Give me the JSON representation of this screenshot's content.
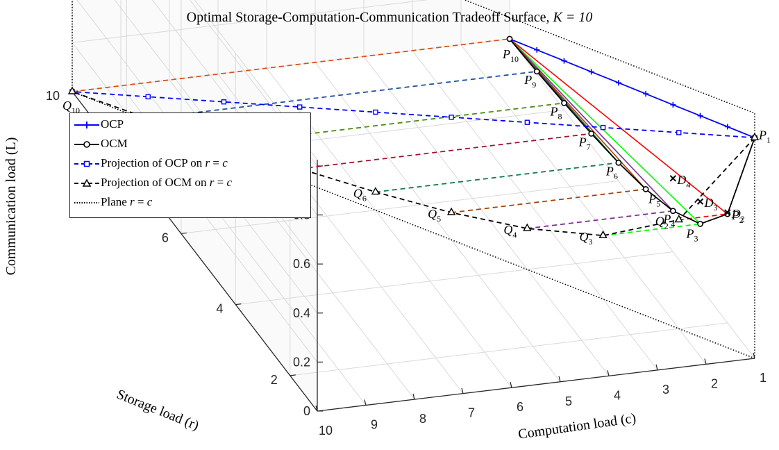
{
  "chart_data": {
    "type": "3d-line",
    "title": "Optimal Storage-Computation-Communication Tradeoff Surface, K = 10",
    "title_main": "Optimal Storage-Computation-Communication Tradeoff Surface, ",
    "title_param": "K = 10",
    "xlabel": "Computation load (c)",
    "ylabel": "Storage load (r)",
    "zlabel": "Communication load (L)",
    "K": 10,
    "xlim": [
      1,
      10
    ],
    "ylim": [
      1,
      10
    ],
    "zlim": [
      0,
      1
    ],
    "x_ticks": [
      10,
      9,
      8,
      7,
      6,
      5,
      4,
      3,
      2,
      1
    ],
    "y_ticks": [
      2,
      4,
      6,
      8,
      10
    ],
    "z_ticks": [
      0,
      0.2,
      0.4,
      0.6,
      0.8,
      1
    ],
    "legend": [
      "OCP",
      "OCM",
      "Projection of OCP on r = c",
      "Projection of OCM on r = c",
      "Plane r = c"
    ],
    "series": [
      {
        "name": "OCP",
        "r": [
          1,
          2,
          3,
          4,
          5,
          6,
          7,
          8,
          9,
          10
        ],
        "c": [
          1,
          1,
          1,
          1,
          1,
          1,
          1,
          1,
          1,
          1
        ],
        "L": [
          0.9,
          0.8,
          0.7,
          0.6,
          0.5,
          0.4,
          0.3,
          0.2,
          0.1,
          0.0
        ]
      },
      {
        "name": "OCM",
        "r": [
          1,
          2,
          3,
          4,
          5,
          6,
          7,
          8,
          9,
          10
        ],
        "c": [
          1,
          2,
          3,
          4,
          5,
          6,
          7,
          8,
          9,
          10
        ],
        "L": [
          0.9,
          0.444,
          0.259,
          0.167,
          0.111,
          0.074,
          0.048,
          0.028,
          0.012,
          0.0
        ]
      },
      {
        "name": "Projection of OCP on r = c",
        "r": [
          1,
          2,
          3,
          4,
          5,
          6,
          7,
          8,
          9,
          10
        ],
        "c": [
          1,
          2,
          3,
          4,
          5,
          6,
          7,
          8,
          9,
          10
        ],
        "L": [
          0.9,
          0.8,
          0.7,
          0.6,
          0.5,
          0.4,
          0.3,
          0.2,
          0.1,
          0.0
        ]
      },
      {
        "name": "Projection of OCM on r = c",
        "r": [
          1,
          2,
          3,
          4,
          5,
          6,
          7,
          8,
          9,
          10
        ],
        "c": [
          1,
          2,
          3,
          4,
          5,
          6,
          7,
          8,
          9,
          10
        ],
        "L": [
          0.9,
          0.444,
          0.259,
          0.167,
          0.111,
          0.074,
          0.048,
          0.028,
          0.012,
          0.0
        ]
      }
    ],
    "points_P": [
      "P_1",
      "P_2",
      "P_3",
      "P_4",
      "P_5",
      "P_6",
      "P_7",
      "P_8",
      "P_9",
      "P_10"
    ],
    "points_Q": [
      "Q_1",
      "Q_2",
      "Q_3",
      "Q_4",
      "Q_5",
      "Q_6",
      "Q_7",
      "Q_8",
      "Q_9",
      "Q_10"
    ],
    "points_D": [
      {
        "label": "D_2",
        "r": 2,
        "c": 1,
        "L": 0.45
      },
      {
        "label": "D_3",
        "r": 3,
        "c": 1,
        "L": 0.35
      },
      {
        "label": "D_4",
        "r": 4,
        "c": 1,
        "L": 0.3
      }
    ],
    "connecting_line_colors": [
      "#ff0000",
      "#00ff00",
      "#7e2f8e",
      "#a2440c",
      "#0e7a4a",
      "#a2142f",
      "#4a8a10",
      "#1f4fa0",
      "#d95319"
    ],
    "colors": {
      "ocp": "#0000ff",
      "ocm": "#000000",
      "proj_ocp": "#0000ff",
      "proj_ocm": "#000000",
      "plane": "#000000",
      "grid": "#d9d9d9"
    }
  }
}
